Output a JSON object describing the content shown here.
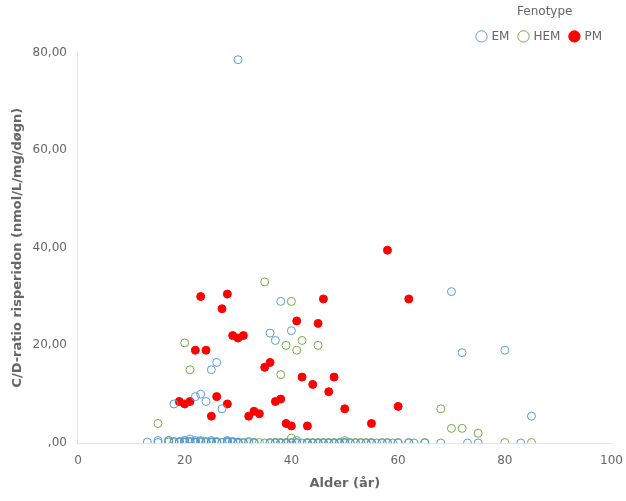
{
  "chart_data": {
    "type": "scatter",
    "xlabel": "Alder (år)",
    "ylabel": "C/D-ratio risperidon (nmol/L/mg/døgn)",
    "xlim": [
      0,
      100
    ],
    "ylim": [
      0,
      80
    ],
    "xticks": [
      0,
      20,
      40,
      60,
      80,
      100
    ],
    "yticks": [
      {
        "value": 0,
        "label": ",00"
      },
      {
        "value": 20,
        "label": "20,00"
      },
      {
        "value": 40,
        "label": "40,00"
      },
      {
        "value": 60,
        "label": "60,00"
      },
      {
        "value": 80,
        "label": "80,00"
      }
    ],
    "grid": false,
    "legend": "upper right",
    "legend_title": "Fenotype",
    "series": [
      {
        "name": "EM",
        "color": "#5b9bd5",
        "marker": "open circle",
        "x": [
          13,
          15,
          15,
          17,
          18,
          18,
          19,
          19,
          19,
          20,
          20,
          20,
          20,
          21,
          21,
          21,
          22,
          22,
          22,
          22,
          23,
          23,
          23,
          24,
          24,
          25,
          25,
          25,
          25,
          26,
          26,
          26,
          27,
          27,
          28,
          28,
          28,
          28,
          29,
          29,
          30,
          30,
          30,
          31,
          32,
          33,
          33,
          35,
          36,
          36,
          37,
          37,
          38,
          38,
          38,
          39,
          39,
          40,
          40,
          40,
          41,
          41,
          42,
          43,
          43,
          43,
          44,
          44,
          45,
          45,
          46,
          46,
          47,
          47,
          48,
          48,
          49,
          49,
          50,
          50,
          51,
          52,
          53,
          54,
          55,
          55,
          56,
          57,
          58,
          59,
          60,
          62,
          63,
          65,
          68,
          70,
          72,
          73,
          75,
          80,
          83,
          85,
          30
        ],
        "values": [
          0.2,
          0.5,
          0.1,
          0.5,
          8.0,
          0.2,
          0.2,
          0.3,
          0.1,
          0.2,
          0.1,
          0.5,
          0.1,
          0.3,
          0.8,
          0.1,
          9.5,
          0.5,
          0.2,
          0.1,
          10.0,
          0.5,
          0.2,
          8.5,
          0.3,
          15.0,
          0.5,
          0.2,
          0.1,
          16.5,
          0.3,
          0.1,
          7.0,
          0.1,
          0.5,
          0.3,
          0.2,
          0.1,
          0.3,
          0.2,
          0.2,
          0.1,
          0.0,
          0.0,
          0.3,
          0.0,
          0.1,
          0.0,
          22.5,
          0.0,
          21.0,
          0.0,
          29.0,
          0.0,
          0.0,
          0.0,
          0.0,
          23.0,
          0.0,
          0.0,
          0.5,
          0.0,
          0.0,
          0.0,
          0.0,
          0.0,
          0.0,
          0.0,
          0.0,
          0.0,
          0.0,
          0.0,
          0.0,
          0.0,
          0.0,
          0.0,
          0.0,
          0.0,
          0.0,
          0.5,
          0.0,
          0.0,
          0.0,
          0.0,
          0.0,
          0.0,
          0.0,
          0.0,
          0.0,
          0.0,
          0.0,
          0.0,
          0.0,
          0.0,
          0.0,
          31.0,
          18.5,
          0.0,
          0.0,
          19.0,
          0.0,
          5.5,
          78.5
        ]
      },
      {
        "name": "HEM",
        "color": "#70ad47",
        "marker": "open circle",
        "x": [
          15,
          17,
          17,
          18,
          19,
          20,
          20,
          21,
          21,
          22,
          22,
          23,
          23,
          24,
          24,
          25,
          25,
          26,
          27,
          28,
          28,
          29,
          29,
          30,
          31,
          32,
          33,
          34,
          35,
          36,
          37,
          37,
          38,
          38,
          39,
          39,
          40,
          40,
          40,
          41,
          41,
          42,
          43,
          44,
          45,
          45,
          46,
          47,
          48,
          49,
          50,
          50,
          51,
          52,
          53,
          54,
          55,
          57,
          58,
          60,
          62,
          65,
          68,
          70,
          72,
          75,
          80,
          85
        ],
        "values": [
          4.0,
          0.5,
          0.2,
          0.3,
          0.2,
          20.5,
          0.5,
          15.0,
          0.3,
          0.2,
          0.1,
          0.3,
          0.1,
          0.2,
          0.1,
          0.2,
          0.1,
          0.2,
          0.1,
          0.2,
          0.1,
          0.1,
          0.1,
          0.1,
          0.1,
          0.1,
          0.1,
          0.1,
          33.0,
          0.1,
          0.1,
          0.1,
          14.0,
          0.1,
          20.0,
          0.1,
          29.0,
          0.1,
          1.0,
          19.0,
          0.1,
          21.0,
          0.1,
          0.1,
          20.0,
          0.1,
          0.1,
          0.1,
          0.1,
          0.1,
          0.1,
          0.1,
          0.1,
          0.1,
          0.1,
          0.1,
          0.1,
          0.1,
          0.1,
          0.1,
          0.1,
          0.1,
          7.0,
          3.0,
          3.0,
          2.0,
          0.1,
          0.1
        ]
      },
      {
        "name": "PM",
        "color": "#ff0000",
        "marker": "circle",
        "x": [
          19,
          20,
          21,
          22,
          23,
          24,
          25,
          26,
          27,
          28,
          28,
          29,
          30,
          31,
          32,
          33,
          34,
          35,
          36,
          37,
          38,
          39,
          40,
          41,
          42,
          43,
          44,
          45,
          46,
          47,
          48,
          50,
          55,
          58,
          60,
          62
        ],
        "values": [
          8.5,
          8.0,
          8.5,
          19.0,
          30.0,
          19.0,
          5.5,
          9.5,
          27.5,
          30.5,
          8.0,
          22.0,
          21.5,
          22.0,
          5.5,
          6.5,
          6.0,
          15.5,
          16.5,
          8.5,
          9.0,
          4.0,
          3.5,
          25.0,
          13.5,
          3.5,
          12.0,
          24.5,
          29.5,
          10.5,
          13.5,
          7.0,
          4.0,
          39.5,
          7.5,
          29.5
        ]
      }
    ]
  }
}
